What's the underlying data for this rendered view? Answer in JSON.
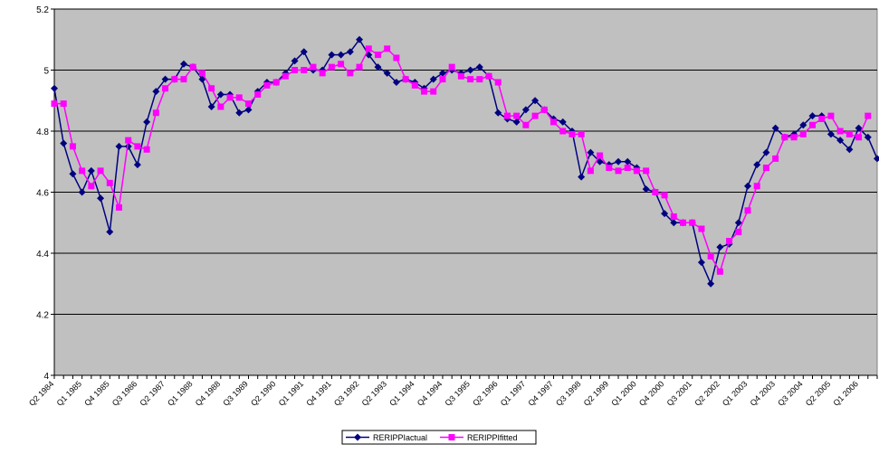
{
  "chart_data": {
    "type": "line",
    "categories": [
      "Q2 1984",
      null,
      null,
      "Q1 1985",
      null,
      null,
      "Q4 1985",
      null,
      null,
      "Q3 1986",
      null,
      null,
      "Q2 1987",
      null,
      null,
      "Q1 1988",
      null,
      null,
      "Q4 1988",
      null,
      null,
      "Q3 1989",
      null,
      null,
      "Q2 1990",
      null,
      null,
      "Q1 1991",
      null,
      null,
      "Q4 1991",
      null,
      null,
      "Q3 1992",
      null,
      null,
      "Q2 1993",
      null,
      null,
      "Q1 1994",
      null,
      null,
      "Q4 1994",
      null,
      null,
      "Q3 1995",
      null,
      null,
      "Q2 1996",
      null,
      null,
      "Q1 1997",
      null,
      null,
      "Q4 1997",
      null,
      null,
      "Q3 1998",
      null,
      null,
      "Q2 1999",
      null,
      null,
      "Q1 2000",
      null,
      null,
      "Q4 2000",
      null,
      null,
      "Q3 2001",
      null,
      null,
      "Q2 2002",
      null,
      null,
      "Q1 2003",
      null,
      null,
      "Q4 2003",
      null,
      null,
      "Q3 2004",
      null,
      null,
      "Q2 2005",
      null,
      null,
      "Q1 2006",
      null,
      null
    ],
    "series": [
      {
        "name": "RERIPPIactual",
        "color": "#000080",
        "marker": "diamond",
        "values": [
          4.94,
          4.76,
          4.66,
          4.6,
          4.67,
          4.58,
          4.47,
          4.75,
          4.75,
          4.69,
          4.83,
          4.93,
          4.97,
          4.97,
          5.02,
          5.01,
          4.97,
          4.88,
          4.92,
          4.92,
          4.86,
          4.87,
          4.93,
          4.96,
          4.96,
          4.99,
          5.03,
          5.06,
          5.0,
          5.0,
          5.05,
          5.05,
          5.06,
          5.1,
          5.05,
          5.01,
          4.99,
          4.96,
          4.97,
          4.96,
          4.94,
          4.97,
          4.99,
          5.0,
          4.99,
          5.0,
          5.01,
          4.98,
          4.86,
          4.84,
          4.83,
          4.87,
          4.9,
          4.87,
          4.84,
          4.83,
          4.8,
          4.65,
          4.73,
          4.7,
          4.69,
          4.7,
          4.7,
          4.68,
          4.61,
          4.6,
          4.53,
          4.5,
          4.5,
          4.5,
          4.37,
          4.3,
          4.42,
          4.43,
          4.5,
          4.62,
          4.69,
          4.73,
          4.81,
          4.78,
          4.79,
          4.82,
          4.85,
          4.85,
          4.79,
          4.77,
          4.74,
          4.81,
          4.78,
          4.71
        ]
      },
      {
        "name": "RERIPPIfitted",
        "color": "#ff00ff",
        "marker": "square",
        "values": [
          4.89,
          4.89,
          4.75,
          4.67,
          4.62,
          4.67,
          4.63,
          4.55,
          4.77,
          4.75,
          4.74,
          4.86,
          4.94,
          4.97,
          4.97,
          5.01,
          4.99,
          4.94,
          4.88,
          4.91,
          4.91,
          4.89,
          4.92,
          4.95,
          4.96,
          4.98,
          5.0,
          5.0,
          5.01,
          4.99,
          5.01,
          5.02,
          4.99,
          5.01,
          5.07,
          5.05,
          5.07,
          5.04,
          4.97,
          4.95,
          4.93,
          4.93,
          4.97,
          5.01,
          4.98,
          4.97,
          4.97,
          4.98,
          4.96,
          4.85,
          4.85,
          4.82,
          4.85,
          4.87,
          4.83,
          4.8,
          4.79,
          4.79,
          4.67,
          4.72,
          4.68,
          4.67,
          4.68,
          4.67,
          4.67,
          4.6,
          4.59,
          4.52,
          4.5,
          4.5,
          4.48,
          4.39,
          4.34,
          4.44,
          4.47,
          4.54,
          4.62,
          4.68,
          4.71,
          4.78,
          4.78,
          4.79,
          4.82,
          4.84,
          4.85,
          4.8,
          4.79,
          4.78,
          4.85,
          null
        ]
      }
    ],
    "ylim": [
      4,
      5.2
    ],
    "yticks": [
      4,
      4.2,
      4.4,
      4.6,
      4.8,
      5,
      5.2
    ],
    "grid": true,
    "plot_background": "#c0c0c0",
    "legend": "bottom"
  }
}
